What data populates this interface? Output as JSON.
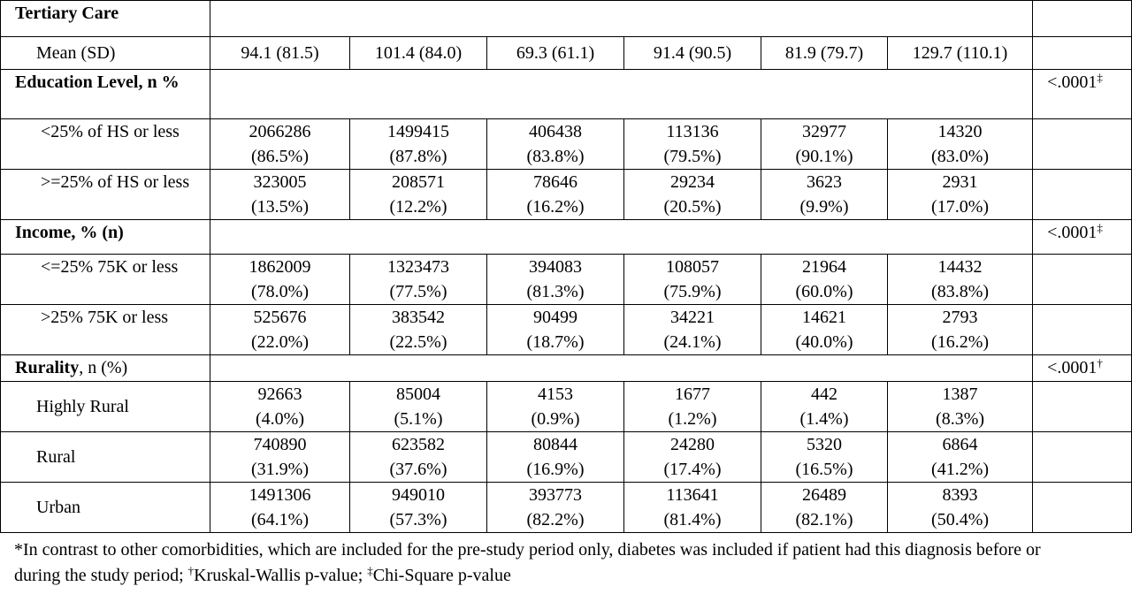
{
  "table": {
    "rows": [
      {
        "kind": "section",
        "label": "Tertiary Care"
      },
      {
        "kind": "data",
        "label": "Mean (SD)",
        "cells": [
          [
            "94.1 (81.5)"
          ],
          [
            "101.4 (84.0)"
          ],
          [
            "69.3 (61.1)"
          ],
          [
            "91.4 (90.5)"
          ],
          [
            "81.9 (79.7)"
          ],
          [
            "129.7 (110.1)"
          ]
        ]
      },
      {
        "kind": "section",
        "label": "Education Level, n %",
        "p_value": "<.0001",
        "p_mark": "‡"
      },
      {
        "kind": "data",
        "label": "<25% of HS or less",
        "cells": [
          [
            "2066286",
            "(86.5%)"
          ],
          [
            "1499415",
            "(87.8%)"
          ],
          [
            "406438",
            "(83.8%)"
          ],
          [
            "113136",
            "(79.5%)"
          ],
          [
            "32977",
            "(90.1%)"
          ],
          [
            "14320",
            "(83.0%)"
          ]
        ]
      },
      {
        "kind": "data",
        "label": ">=25% of HS or less",
        "cells": [
          [
            "323005",
            "(13.5%)"
          ],
          [
            "208571",
            "(12.2%)"
          ],
          [
            "78646",
            "(16.2%)"
          ],
          [
            "29234",
            "(20.5%)"
          ],
          [
            "3623",
            "(9.9%)"
          ],
          [
            "2931",
            "(17.0%)"
          ]
        ]
      },
      {
        "kind": "section",
        "label": "Income, % (n)",
        "p_value": "<.0001",
        "p_mark": "‡"
      },
      {
        "kind": "data",
        "label": "<=25% 75K or less",
        "cells": [
          [
            "1862009",
            "(78.0%)"
          ],
          [
            "1323473",
            "(77.5%)"
          ],
          [
            "394083",
            "(81.3%)"
          ],
          [
            "108057",
            "(75.9%)"
          ],
          [
            "21964",
            "(60.0%)"
          ],
          [
            "14432",
            "(83.8%)"
          ]
        ]
      },
      {
        "kind": "data",
        "label": ">25% 75K or less",
        "cells": [
          [
            "525676",
            "(22.0%)"
          ],
          [
            "383542",
            "(22.5%)"
          ],
          [
            "90499",
            "(18.7%)"
          ],
          [
            "34221",
            "(24.1%)"
          ],
          [
            "14621",
            "(40.0%)"
          ],
          [
            "2793",
            "(16.2%)"
          ]
        ]
      },
      {
        "kind": "section",
        "label": "Rurality",
        "label_rest": ", n (%)",
        "p_value": "<.0001",
        "p_mark": "†"
      },
      {
        "kind": "data",
        "label": "Highly Rural",
        "cells": [
          [
            "92663",
            "(4.0%)"
          ],
          [
            "85004",
            "(5.1%)"
          ],
          [
            "4153",
            "(0.9%)"
          ],
          [
            "1677",
            "(1.2%)"
          ],
          [
            "442",
            "(1.4%)"
          ],
          [
            "1387",
            "(8.3%)"
          ]
        ]
      },
      {
        "kind": "data",
        "label": "Rural",
        "cells": [
          [
            "740890",
            "(31.9%)"
          ],
          [
            "623582",
            "(37.6%)"
          ],
          [
            "80844",
            "(16.9%)"
          ],
          [
            "24280",
            "(17.4%)"
          ],
          [
            "5320",
            "(16.5%)"
          ],
          [
            "6864",
            "(41.2%)"
          ]
        ]
      },
      {
        "kind": "data",
        "label": "Urban",
        "cells": [
          [
            "1491306",
            "(64.1%)"
          ],
          [
            "949010",
            "(57.3%)"
          ],
          [
            "393773",
            "(82.2%)"
          ],
          [
            "113641",
            "(81.4%)"
          ],
          [
            "26489",
            "(82.1%)"
          ],
          [
            "8393",
            "(50.4%)"
          ]
        ]
      }
    ]
  },
  "footnote": [
    "*In contrast to other comorbidities, which are included for the pre-study period only, diabetes was included if patient had this diagnosis before or during the study period; ",
    "†",
    "Kruskal-Wallis p-value; ",
    "‡",
    "Chi-Square p-value"
  ]
}
